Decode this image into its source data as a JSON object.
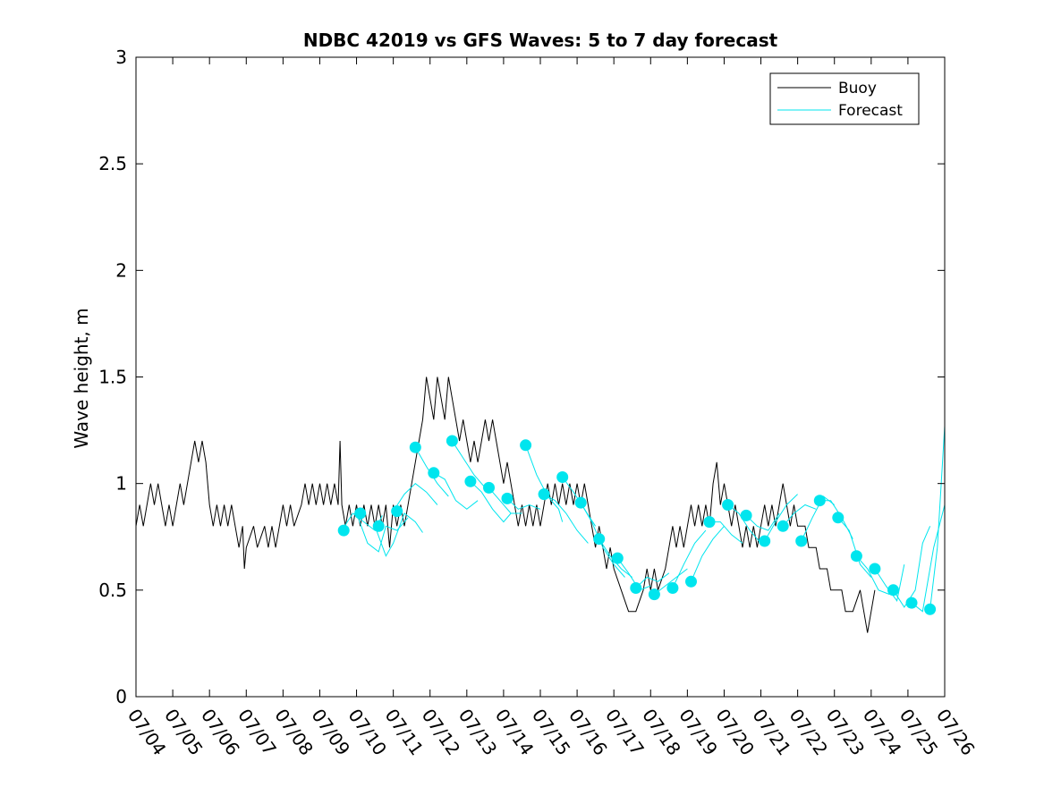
{
  "chart_data": {
    "type": "line",
    "title": "NDBC 42019 vs GFS Waves: 5 to 7 day forecast",
    "xlabel": "",
    "ylabel": "Wave height, m",
    "ylim": [
      0,
      3
    ],
    "y_ticks": [
      "0",
      "0.5",
      "1",
      "1.5",
      "2",
      "2.5",
      "3"
    ],
    "x_ticks": [
      "07/04",
      "07/05",
      "07/06",
      "07/07",
      "07/08",
      "07/09",
      "07/10",
      "07/11",
      "07/12",
      "07/13",
      "07/14",
      "07/15",
      "07/16",
      "07/17",
      "07/18",
      "07/19",
      "07/20",
      "07/21",
      "07/22",
      "07/23",
      "07/24",
      "07/25",
      "07/26"
    ],
    "xlim_days": [
      0,
      22
    ],
    "grid": false,
    "legend_position": "top-right",
    "legend": [
      {
        "name": "Buoy",
        "color": "#000000"
      },
      {
        "name": "Forecast",
        "color": "#00e5ee"
      }
    ],
    "colors": {
      "buoy": "#000000",
      "forecast": "#00e5ee",
      "marker": "#00e5ee"
    },
    "buoy_points": [
      [
        0.0,
        0.8
      ],
      [
        0.1,
        0.9
      ],
      [
        0.2,
        0.8
      ],
      [
        0.3,
        0.9
      ],
      [
        0.4,
        1.0
      ],
      [
        0.5,
        0.9
      ],
      [
        0.6,
        1.0
      ],
      [
        0.7,
        0.9
      ],
      [
        0.8,
        0.8
      ],
      [
        0.9,
        0.9
      ],
      [
        1.0,
        0.8
      ],
      [
        1.1,
        0.9
      ],
      [
        1.2,
        1.0
      ],
      [
        1.3,
        0.9
      ],
      [
        1.4,
        1.0
      ],
      [
        1.5,
        1.1
      ],
      [
        1.6,
        1.2
      ],
      [
        1.7,
        1.1
      ],
      [
        1.8,
        1.2
      ],
      [
        1.9,
        1.1
      ],
      [
        2.0,
        0.9
      ],
      [
        2.1,
        0.8
      ],
      [
        2.2,
        0.9
      ],
      [
        2.3,
        0.8
      ],
      [
        2.4,
        0.9
      ],
      [
        2.5,
        0.8
      ],
      [
        2.6,
        0.9
      ],
      [
        2.7,
        0.8
      ],
      [
        2.8,
        0.7
      ],
      [
        2.9,
        0.8
      ],
      [
        2.95,
        0.6
      ],
      [
        3.0,
        0.7
      ],
      [
        3.2,
        0.8
      ],
      [
        3.3,
        0.7
      ],
      [
        3.5,
        0.8
      ],
      [
        3.6,
        0.7
      ],
      [
        3.7,
        0.8
      ],
      [
        3.8,
        0.7
      ],
      [
        3.9,
        0.8
      ],
      [
        4.0,
        0.9
      ],
      [
        4.1,
        0.8
      ],
      [
        4.2,
        0.9
      ],
      [
        4.3,
        0.8
      ],
      [
        4.5,
        0.9
      ],
      [
        4.6,
        1.0
      ],
      [
        4.7,
        0.9
      ],
      [
        4.8,
        1.0
      ],
      [
        4.9,
        0.9
      ],
      [
        5.0,
        1.0
      ],
      [
        5.1,
        0.9
      ],
      [
        5.2,
        1.0
      ],
      [
        5.3,
        0.9
      ],
      [
        5.4,
        1.0
      ],
      [
        5.5,
        0.9
      ],
      [
        5.55,
        1.2
      ],
      [
        5.6,
        0.9
      ],
      [
        5.7,
        0.8
      ],
      [
        5.8,
        0.9
      ],
      [
        5.9,
        0.8
      ],
      [
        6.0,
        0.9
      ],
      [
        6.1,
        0.8
      ],
      [
        6.2,
        0.9
      ],
      [
        6.3,
        0.8
      ],
      [
        6.4,
        0.9
      ],
      [
        6.5,
        0.8
      ],
      [
        6.6,
        0.9
      ],
      [
        6.7,
        0.8
      ],
      [
        6.8,
        0.9
      ],
      [
        6.9,
        0.7
      ],
      [
        7.0,
        0.9
      ],
      [
        7.1,
        0.8
      ],
      [
        7.2,
        0.9
      ],
      [
        7.3,
        0.8
      ],
      [
        7.5,
        1.0
      ],
      [
        7.6,
        1.1
      ],
      [
        7.7,
        1.2
      ],
      [
        7.8,
        1.3
      ],
      [
        7.9,
        1.5
      ],
      [
        8.0,
        1.4
      ],
      [
        8.1,
        1.3
      ],
      [
        8.2,
        1.5
      ],
      [
        8.3,
        1.4
      ],
      [
        8.4,
        1.3
      ],
      [
        8.5,
        1.5
      ],
      [
        8.6,
        1.4
      ],
      [
        8.7,
        1.3
      ],
      [
        8.8,
        1.2
      ],
      [
        8.9,
        1.3
      ],
      [
        9.0,
        1.2
      ],
      [
        9.1,
        1.1
      ],
      [
        9.2,
        1.2
      ],
      [
        9.3,
        1.1
      ],
      [
        9.4,
        1.2
      ],
      [
        9.5,
        1.3
      ],
      [
        9.6,
        1.2
      ],
      [
        9.7,
        1.3
      ],
      [
        9.8,
        1.2
      ],
      [
        9.9,
        1.1
      ],
      [
        10.0,
        1.0
      ],
      [
        10.1,
        1.1
      ],
      [
        10.2,
        1.0
      ],
      [
        10.3,
        0.9
      ],
      [
        10.4,
        0.8
      ],
      [
        10.5,
        0.9
      ],
      [
        10.6,
        0.8
      ],
      [
        10.7,
        0.9
      ],
      [
        10.8,
        0.8
      ],
      [
        10.9,
        0.9
      ],
      [
        11.0,
        0.8
      ],
      [
        11.1,
        0.9
      ],
      [
        11.2,
        1.0
      ],
      [
        11.3,
        0.9
      ],
      [
        11.4,
        1.0
      ],
      [
        11.5,
        0.9
      ],
      [
        11.6,
        1.0
      ],
      [
        11.7,
        0.9
      ],
      [
        11.8,
        1.0
      ],
      [
        11.9,
        0.9
      ],
      [
        12.0,
        1.0
      ],
      [
        12.1,
        0.9
      ],
      [
        12.2,
        1.0
      ],
      [
        12.3,
        0.9
      ],
      [
        12.4,
        0.8
      ],
      [
        12.5,
        0.7
      ],
      [
        12.6,
        0.8
      ],
      [
        12.7,
        0.7
      ],
      [
        12.8,
        0.6
      ],
      [
        12.9,
        0.7
      ],
      [
        13.0,
        0.6
      ],
      [
        13.2,
        0.5
      ],
      [
        13.4,
        0.4
      ],
      [
        13.6,
        0.4
      ],
      [
        13.8,
        0.5
      ],
      [
        13.9,
        0.6
      ],
      [
        14.0,
        0.5
      ],
      [
        14.1,
        0.6
      ],
      [
        14.2,
        0.5
      ],
      [
        14.4,
        0.6
      ],
      [
        14.5,
        0.7
      ],
      [
        14.6,
        0.8
      ],
      [
        14.7,
        0.7
      ],
      [
        14.8,
        0.8
      ],
      [
        14.9,
        0.7
      ],
      [
        15.0,
        0.8
      ],
      [
        15.1,
        0.9
      ],
      [
        15.2,
        0.8
      ],
      [
        15.3,
        0.9
      ],
      [
        15.4,
        0.8
      ],
      [
        15.5,
        0.9
      ],
      [
        15.6,
        0.8
      ],
      [
        15.7,
        1.0
      ],
      [
        15.8,
        1.1
      ],
      [
        15.9,
        0.9
      ],
      [
        16.0,
        1.0
      ],
      [
        16.1,
        0.9
      ],
      [
        16.2,
        0.8
      ],
      [
        16.3,
        0.9
      ],
      [
        16.4,
        0.8
      ],
      [
        16.5,
        0.7
      ],
      [
        16.6,
        0.8
      ],
      [
        16.7,
        0.7
      ],
      [
        16.8,
        0.8
      ],
      [
        16.9,
        0.7
      ],
      [
        17.0,
        0.8
      ],
      [
        17.1,
        0.9
      ],
      [
        17.2,
        0.8
      ],
      [
        17.3,
        0.9
      ],
      [
        17.4,
        0.8
      ],
      [
        17.5,
        0.9
      ],
      [
        17.6,
        1.0
      ],
      [
        17.7,
        0.9
      ],
      [
        17.8,
        0.8
      ],
      [
        17.9,
        0.9
      ],
      [
        18.0,
        0.8
      ],
      [
        18.2,
        0.8
      ],
      [
        18.3,
        0.7
      ],
      [
        18.5,
        0.7
      ],
      [
        18.6,
        0.6
      ],
      [
        18.8,
        0.6
      ],
      [
        18.9,
        0.5
      ],
      [
        19.2,
        0.5
      ],
      [
        19.3,
        0.4
      ],
      [
        19.5,
        0.4
      ],
      [
        19.7,
        0.5
      ],
      [
        19.8,
        0.4
      ],
      [
        19.9,
        0.3
      ],
      [
        20.0,
        0.4
      ],
      [
        20.1,
        0.5
      ]
    ],
    "forecast_runs": [
      [
        [
          5.6,
          0.78
        ],
        [
          5.9,
          0.86
        ],
        [
          6.2,
          0.82
        ],
        [
          6.5,
          0.78
        ],
        [
          6.7,
          0.85
        ]
      ],
      [
        [
          6.0,
          0.86
        ],
        [
          6.3,
          0.72
        ],
        [
          6.6,
          0.68
        ],
        [
          6.8,
          0.8
        ],
        [
          7.1,
          0.78
        ],
        [
          7.4,
          0.84
        ]
      ],
      [
        [
          6.5,
          0.8
        ],
        [
          6.8,
          0.66
        ],
        [
          7.0,
          0.72
        ],
        [
          7.3,
          0.86
        ],
        [
          7.6,
          0.82
        ],
        [
          7.8,
          0.77
        ]
      ],
      [
        [
          7.0,
          0.87
        ],
        [
          7.3,
          0.95
        ],
        [
          7.6,
          1.0
        ],
        [
          7.9,
          0.96
        ],
        [
          8.2,
          0.9
        ]
      ],
      [
        [
          7.6,
          1.17
        ],
        [
          7.9,
          1.08
        ],
        [
          8.2,
          1.0
        ],
        [
          8.5,
          0.94
        ]
      ],
      [
        [
          8.1,
          1.05
        ],
        [
          8.4,
          1.02
        ],
        [
          8.7,
          0.92
        ],
        [
          9.0,
          0.88
        ],
        [
          9.3,
          0.92
        ]
      ],
      [
        [
          8.6,
          1.2
        ],
        [
          8.9,
          1.12
        ],
        [
          9.2,
          1.04
        ],
        [
          9.5,
          0.98
        ]
      ],
      [
        [
          9.1,
          1.01
        ],
        [
          9.4,
          0.96
        ],
        [
          9.7,
          0.88
        ],
        [
          10.0,
          0.82
        ],
        [
          10.2,
          0.86
        ]
      ],
      [
        [
          9.6,
          0.98
        ],
        [
          9.9,
          0.92
        ],
        [
          10.2,
          0.86
        ],
        [
          10.5,
          0.86
        ]
      ],
      [
        [
          10.1,
          0.93
        ],
        [
          10.4,
          0.88
        ],
        [
          10.7,
          0.9
        ],
        [
          11.0,
          0.88
        ]
      ],
      [
        [
          10.6,
          1.18
        ],
        [
          10.9,
          1.04
        ],
        [
          11.2,
          0.94
        ],
        [
          11.5,
          0.88
        ],
        [
          11.6,
          0.82
        ]
      ],
      [
        [
          11.1,
          0.95
        ],
        [
          11.4,
          0.92
        ],
        [
          11.7,
          0.86
        ],
        [
          12.0,
          0.78
        ],
        [
          12.3,
          0.72
        ]
      ],
      [
        [
          11.6,
          1.03
        ],
        [
          11.9,
          0.96
        ],
        [
          12.2,
          0.88
        ],
        [
          12.5,
          0.8
        ]
      ],
      [
        [
          12.1,
          0.91
        ],
        [
          12.4,
          0.82
        ],
        [
          12.7,
          0.7
        ],
        [
          13.0,
          0.62
        ],
        [
          13.3,
          0.56
        ]
      ],
      [
        [
          12.6,
          0.74
        ],
        [
          12.9,
          0.66
        ],
        [
          13.2,
          0.6
        ],
        [
          13.5,
          0.56
        ]
      ],
      [
        [
          13.1,
          0.65
        ],
        [
          13.4,
          0.58
        ],
        [
          13.7,
          0.5
        ],
        [
          14.0,
          0.52
        ]
      ],
      [
        [
          13.6,
          0.51
        ],
        [
          13.9,
          0.56
        ],
        [
          14.2,
          0.54
        ],
        [
          14.5,
          0.58
        ]
      ],
      [
        [
          14.1,
          0.48
        ],
        [
          14.4,
          0.52
        ],
        [
          14.7,
          0.56
        ],
        [
          15.0,
          0.6
        ]
      ],
      [
        [
          14.6,
          0.51
        ],
        [
          14.9,
          0.62
        ],
        [
          15.2,
          0.72
        ],
        [
          15.5,
          0.78
        ]
      ],
      [
        [
          15.1,
          0.54
        ],
        [
          15.4,
          0.66
        ],
        [
          15.7,
          0.74
        ],
        [
          16.0,
          0.8
        ]
      ],
      [
        [
          15.6,
          0.82
        ],
        [
          15.9,
          0.82
        ],
        [
          16.2,
          0.76
        ],
        [
          16.5,
          0.72
        ]
      ],
      [
        [
          16.1,
          0.9
        ],
        [
          16.4,
          0.86
        ],
        [
          16.7,
          0.78
        ],
        [
          17.0,
          0.72
        ]
      ],
      [
        [
          16.6,
          0.85
        ],
        [
          16.9,
          0.8
        ],
        [
          17.2,
          0.78
        ],
        [
          17.5,
          0.86
        ]
      ],
      [
        [
          17.1,
          0.73
        ],
        [
          17.4,
          0.82
        ],
        [
          17.7,
          0.9
        ],
        [
          18.0,
          0.95
        ]
      ],
      [
        [
          17.6,
          0.8
        ],
        [
          17.9,
          0.86
        ],
        [
          18.2,
          0.9
        ],
        [
          18.5,
          0.88
        ]
      ],
      [
        [
          18.1,
          0.73
        ],
        [
          18.4,
          0.84
        ],
        [
          18.7,
          0.94
        ],
        [
          19.0,
          0.9
        ]
      ],
      [
        [
          18.6,
          0.92
        ],
        [
          18.9,
          0.92
        ],
        [
          19.2,
          0.84
        ],
        [
          19.5,
          0.74
        ]
      ],
      [
        [
          19.1,
          0.84
        ],
        [
          19.4,
          0.78
        ],
        [
          19.7,
          0.62
        ],
        [
          20.0,
          0.56
        ]
      ],
      [
        [
          19.6,
          0.66
        ],
        [
          19.9,
          0.6
        ],
        [
          20.2,
          0.5
        ],
        [
          20.5,
          0.48
        ]
      ],
      [
        [
          20.1,
          0.6
        ],
        [
          20.4,
          0.52
        ],
        [
          20.7,
          0.45
        ],
        [
          20.9,
          0.62
        ]
      ],
      [
        [
          20.6,
          0.5
        ],
        [
          20.9,
          0.42
        ],
        [
          21.2,
          0.5
        ],
        [
          21.4,
          0.72
        ],
        [
          21.6,
          0.8
        ]
      ],
      [
        [
          21.1,
          0.44
        ],
        [
          21.4,
          0.4
        ],
        [
          21.7,
          0.7
        ],
        [
          22.0,
          0.9
        ]
      ],
      [
        [
          21.6,
          0.41
        ],
        [
          21.8,
          0.7
        ],
        [
          22.0,
          1.27
        ]
      ]
    ],
    "forecast_markers": [
      [
        5.65,
        0.78
      ],
      [
        6.1,
        0.86
      ],
      [
        6.6,
        0.8
      ],
      [
        7.1,
        0.87
      ],
      [
        7.6,
        1.17
      ],
      [
        8.1,
        1.05
      ],
      [
        8.6,
        1.2
      ],
      [
        9.1,
        1.01
      ],
      [
        9.6,
        0.98
      ],
      [
        10.1,
        0.93
      ],
      [
        10.6,
        1.18
      ],
      [
        11.1,
        0.95
      ],
      [
        11.6,
        1.03
      ],
      [
        12.1,
        0.91
      ],
      [
        12.6,
        0.74
      ],
      [
        13.1,
        0.65
      ],
      [
        13.6,
        0.51
      ],
      [
        14.1,
        0.48
      ],
      [
        14.6,
        0.51
      ],
      [
        15.1,
        0.54
      ],
      [
        15.6,
        0.82
      ],
      [
        16.1,
        0.9
      ],
      [
        16.6,
        0.85
      ],
      [
        17.1,
        0.73
      ],
      [
        17.6,
        0.8
      ],
      [
        18.1,
        0.73
      ],
      [
        18.6,
        0.92
      ],
      [
        19.1,
        0.84
      ],
      [
        19.6,
        0.66
      ],
      [
        20.1,
        0.6
      ],
      [
        20.6,
        0.5
      ],
      [
        21.1,
        0.44
      ],
      [
        21.6,
        0.41
      ]
    ]
  }
}
